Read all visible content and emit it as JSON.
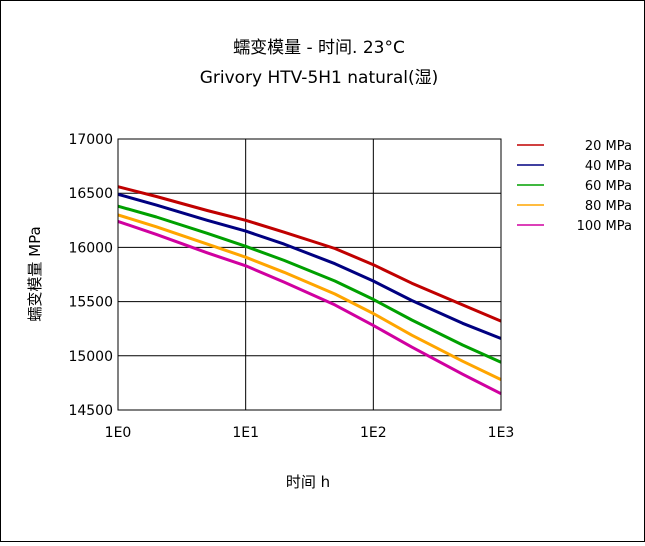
{
  "chart_data": {
    "type": "line",
    "title": "蠕变模量 - 时间. 23°C",
    "subtitle": "Grivory HTV-5H1 natural(湿)",
    "xlabel": "时间 h",
    "ylabel": "蠕变模量 MPa",
    "x_scale": "log",
    "xlim": [
      1,
      1000
    ],
    "ylim": [
      14500,
      17000
    ],
    "x_ticks": [
      {
        "value": 1,
        "label": "1E0"
      },
      {
        "value": 10,
        "label": "1E1"
      },
      {
        "value": 100,
        "label": "1E2"
      },
      {
        "value": 1000,
        "label": "1E3"
      }
    ],
    "y_ticks": [
      {
        "value": 17000,
        "label": "17000"
      },
      {
        "value": 16500,
        "label": "16500"
      },
      {
        "value": 16000,
        "label": "16000"
      },
      {
        "value": 15500,
        "label": "15500"
      },
      {
        "value": 15000,
        "label": "15000"
      },
      {
        "value": 14500,
        "label": "14500"
      }
    ],
    "grid": true,
    "legend_position": "right",
    "x": [
      1,
      2,
      5,
      10,
      20,
      50,
      100,
      200,
      500,
      1000
    ],
    "series": [
      {
        "name": "20 MPa",
        "color": "#c00000",
        "values": [
          16560,
          16470,
          16340,
          16250,
          16140,
          15990,
          15840,
          15670,
          15470,
          15320
        ]
      },
      {
        "name": "40 MPa",
        "color": "#000080",
        "values": [
          16490,
          16390,
          16250,
          16150,
          16030,
          15850,
          15690,
          15510,
          15300,
          15160
        ]
      },
      {
        "name": "60 MPa",
        "color": "#00a000",
        "values": [
          16380,
          16280,
          16130,
          16010,
          15880,
          15690,
          15520,
          15330,
          15100,
          14940
        ]
      },
      {
        "name": "80 MPa",
        "color": "#ffa500",
        "values": [
          16300,
          16190,
          16030,
          15910,
          15770,
          15570,
          15390,
          15190,
          14950,
          14780
        ]
      },
      {
        "name": "100 MPa",
        "color": "#d000a0",
        "values": [
          16240,
          16120,
          15950,
          15830,
          15680,
          15470,
          15280,
          15080,
          14830,
          14650
        ]
      }
    ]
  }
}
